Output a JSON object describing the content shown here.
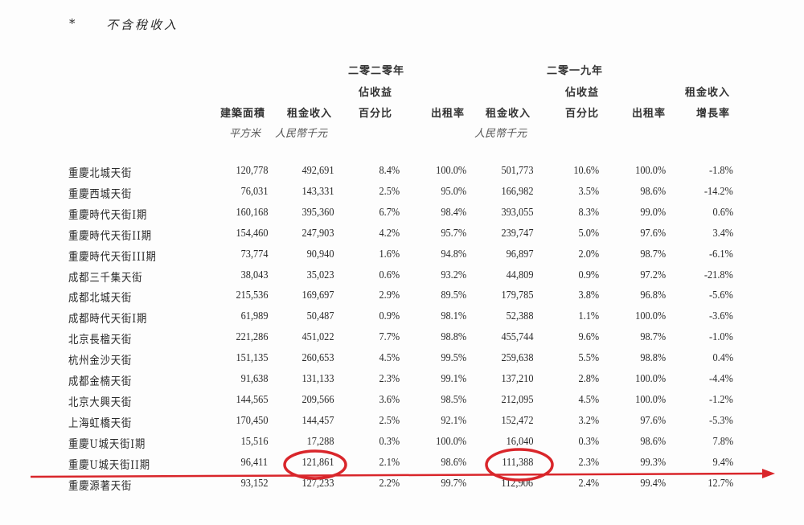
{
  "footnote": {
    "mark": "*",
    "text": "不含稅收入"
  },
  "headers": {
    "year_2020": "二零二零年",
    "year_2019": "二零一九年",
    "pct_line1": "佔收益",
    "pct_line2": "百分比",
    "area": "建築面積",
    "rent": "租金收入",
    "occupancy": "出租率",
    "growth_line1": "租金收入",
    "growth_line2": "增長率",
    "unit_area": "平方米",
    "unit_rmb": "人民幣千元"
  },
  "rows": [
    {
      "name": "重慶北城天街",
      "area": "120,778",
      "rent2020": "492,691",
      "pct2020": "8.4%",
      "occ2020": "100.0%",
      "rent2019": "501,773",
      "pct2019": "10.6%",
      "occ2019": "100.0%",
      "growth": "-1.8%"
    },
    {
      "name": "重慶西城天街",
      "area": "76,031",
      "rent2020": "143,331",
      "pct2020": "2.5%",
      "occ2020": "95.0%",
      "rent2019": "166,982",
      "pct2019": "3.5%",
      "occ2019": "98.6%",
      "growth": "-14.2%"
    },
    {
      "name": "重慶時代天街I期",
      "area": "160,168",
      "rent2020": "395,360",
      "pct2020": "6.7%",
      "occ2020": "98.4%",
      "rent2019": "393,055",
      "pct2019": "8.3%",
      "occ2019": "99.0%",
      "growth": "0.6%"
    },
    {
      "name": "重慶時代天街II期",
      "area": "154,460",
      "rent2020": "247,903",
      "pct2020": "4.2%",
      "occ2020": "95.7%",
      "rent2019": "239,747",
      "pct2019": "5.0%",
      "occ2019": "97.6%",
      "growth": "3.4%"
    },
    {
      "name": "重慶時代天街III期",
      "area": "73,774",
      "rent2020": "90,940",
      "pct2020": "1.6%",
      "occ2020": "94.8%",
      "rent2019": "96,897",
      "pct2019": "2.0%",
      "occ2019": "98.7%",
      "growth": "-6.1%"
    },
    {
      "name": "成都三千集天街",
      "area": "38,043",
      "rent2020": "35,023",
      "pct2020": "0.6%",
      "occ2020": "93.2%",
      "rent2019": "44,809",
      "pct2019": "0.9%",
      "occ2019": "97.2%",
      "growth": "-21.8%"
    },
    {
      "name": "成都北城天街",
      "area": "215,536",
      "rent2020": "169,697",
      "pct2020": "2.9%",
      "occ2020": "89.5%",
      "rent2019": "179,785",
      "pct2019": "3.8%",
      "occ2019": "96.8%",
      "growth": "-5.6%"
    },
    {
      "name": "成都時代天街I期",
      "area": "61,989",
      "rent2020": "50,487",
      "pct2020": "0.9%",
      "occ2020": "98.1%",
      "rent2019": "52,388",
      "pct2019": "1.1%",
      "occ2019": "100.0%",
      "growth": "-3.6%"
    },
    {
      "name": "北京長楹天街",
      "area": "221,286",
      "rent2020": "451,022",
      "pct2020": "7.7%",
      "occ2020": "98.8%",
      "rent2019": "455,744",
      "pct2019": "9.6%",
      "occ2019": "98.7%",
      "growth": "-1.0%"
    },
    {
      "name": "杭州金沙天街",
      "area": "151,135",
      "rent2020": "260,653",
      "pct2020": "4.5%",
      "occ2020": "99.5%",
      "rent2019": "259,638",
      "pct2019": "5.5%",
      "occ2019": "98.8%",
      "growth": "0.4%"
    },
    {
      "name": "成都金楠天街",
      "area": "91,638",
      "rent2020": "131,133",
      "pct2020": "2.3%",
      "occ2020": "99.1%",
      "rent2019": "137,210",
      "pct2019": "2.8%",
      "occ2019": "100.0%",
      "growth": "-4.4%"
    },
    {
      "name": "北京大興天街",
      "area": "144,565",
      "rent2020": "209,566",
      "pct2020": "3.6%",
      "occ2020": "98.5%",
      "rent2019": "212,095",
      "pct2019": "4.5%",
      "occ2019": "100.0%",
      "growth": "-1.2%"
    },
    {
      "name": "上海虹橋天街",
      "area": "170,450",
      "rent2020": "144,457",
      "pct2020": "2.5%",
      "occ2020": "92.1%",
      "rent2019": "152,472",
      "pct2019": "3.2%",
      "occ2019": "97.6%",
      "growth": "-5.3%"
    },
    {
      "name": "重慶U城天街I期",
      "area": "15,516",
      "rent2020": "17,288",
      "pct2020": "0.3%",
      "occ2020": "100.0%",
      "rent2019": "16,040",
      "pct2019": "0.3%",
      "occ2019": "98.6%",
      "growth": "7.8%"
    },
    {
      "name": "重慶U城天街II期",
      "area": "96,411",
      "rent2020": "121,861",
      "pct2020": "2.1%",
      "occ2020": "98.6%",
      "rent2019": "111,388",
      "pct2019": "2.3%",
      "occ2019": "99.3%",
      "growth": "9.4%"
    },
    {
      "name": "重慶源著天街",
      "area": "93,152",
      "rent2020": "127,233",
      "pct2020": "2.2%",
      "occ2020": "99.7%",
      "rent2019": "112,906",
      "pct2019": "2.4%",
      "occ2019": "99.4%",
      "growth": "12.7%"
    }
  ],
  "annotations": {
    "color": "#d9262b",
    "circled": [
      "121,861",
      "111,388"
    ],
    "arrow_row": "重慶U城天街II期"
  }
}
